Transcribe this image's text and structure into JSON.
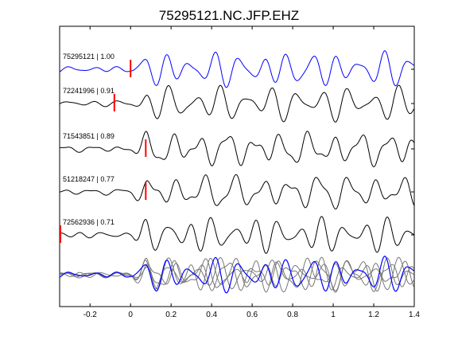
{
  "chart_data": {
    "type": "line",
    "title": "75295121.NC.JFP.EHZ",
    "xlabel": "",
    "ylabel": "",
    "xlim": [
      -0.35,
      1.4
    ],
    "xticks": [
      -0.2,
      0,
      0.2,
      0.4,
      0.6,
      0.8,
      1,
      1.2,
      1.4
    ],
    "xtick_labels": [
      "-0.2",
      "0",
      "0.2",
      "0.4",
      "0.6",
      "0.8",
      "1",
      "1.2",
      "1.4"
    ],
    "grid": false,
    "legend": "none",
    "colors": {
      "reference": "#0000ff",
      "trace": "#000000",
      "stack": "#777777",
      "pick": "#ff0000"
    },
    "traces": [
      {
        "label": "75295121 | 1.00",
        "pick_time": 0.0,
        "seed": 1,
        "color": "reference"
      },
      {
        "label": "72241996 | 0.91",
        "pick_time": -0.08,
        "seed": 2,
        "color": "trace"
      },
      {
        "label": "71543851 | 0.89",
        "pick_time": 0.075,
        "seed": 3,
        "color": "trace"
      },
      {
        "label": "51218247 | 0.77",
        "pick_time": 0.075,
        "seed": 4,
        "color": "trace"
      },
      {
        "label": "72562936 | 0.71",
        "pick_time": -0.35,
        "seed": 5,
        "color": "trace"
      }
    ],
    "stack": {
      "label": "",
      "seeds": [
        2,
        3,
        4,
        5
      ],
      "reference_seed": 1
    }
  }
}
